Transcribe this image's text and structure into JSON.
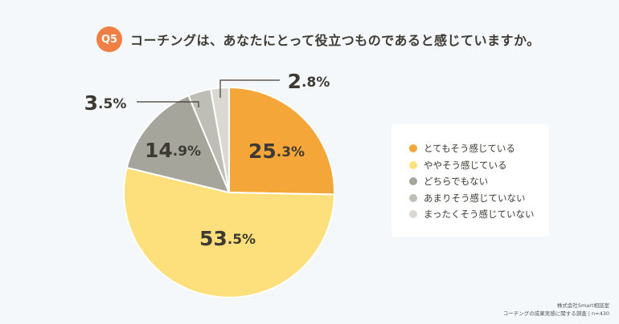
{
  "header": {
    "badge": "Q5",
    "question": "コーチングは、あなたにとって役立つものであると感じていますか。"
  },
  "chart_data": {
    "type": "pie",
    "title": "コーチングは、あなたにとって役立つものであると感じていますか。",
    "start": "12 o'clock, clockwise",
    "slices": [
      {
        "label": "とてもそう感じている",
        "value": 25.3,
        "display": "25.3%",
        "color": "#f5a638"
      },
      {
        "label": "ややそう感じている",
        "value": 53.5,
        "display": "53.5%",
        "color": "#fde07c"
      },
      {
        "label": "どちらでもない",
        "value": 14.9,
        "display": "14.9%",
        "color": "#a5a59b"
      },
      {
        "label": "あまりそう感じていない",
        "value": 3.5,
        "display": "3.5%",
        "color": "#bebeb6"
      },
      {
        "label": "まったくそう感じていない",
        "value": 2.8,
        "display": "2.8%",
        "color": "#dad8d1"
      }
    ],
    "legend_position": "right"
  },
  "footer": {
    "company": "株式会社Smart相談室",
    "survey": "コーチングの成果実感に関する調査 | n=430"
  }
}
